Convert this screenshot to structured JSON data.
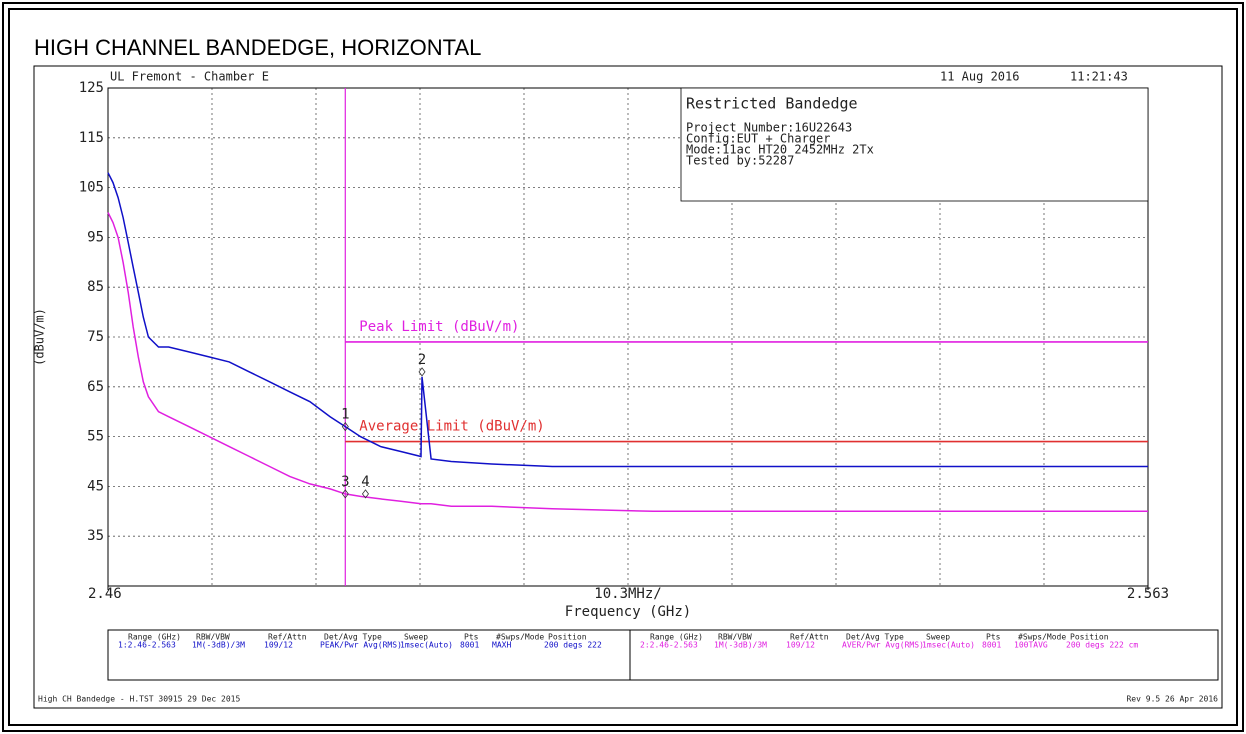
{
  "chart_data": {
    "type": "line",
    "title": "HIGH CHANNEL BANDEDGE, HORIZONTAL",
    "site": "UL Fremont - Chamber E",
    "date": "11 Aug 2016",
    "time": "11:21:43",
    "info": {
      "heading": "Restricted Bandedge",
      "lines": [
        "Project Number:16U22643",
        "Config:EUT + Charger",
        "Mode:11ac HT20 2452MHz 2Tx",
        "Tested by:52287"
      ]
    },
    "ylabel": "(dBuV/m)",
    "xlabel": "Frequency (GHz)",
    "x_span_label": "10.3MHz/",
    "xlim": [
      2.46,
      2.563
    ],
    "xticks": [
      2.46,
      2.563
    ],
    "ylim": [
      25,
      125
    ],
    "yticks": [
      125,
      115,
      105,
      95,
      85,
      75,
      65,
      55,
      45,
      35
    ],
    "grid": true,
    "x": [
      2.46,
      2.4605,
      2.461,
      2.4615,
      2.462,
      2.4625,
      2.463,
      2.4635,
      2.464,
      2.465,
      2.466,
      2.468,
      2.47,
      2.472,
      2.474,
      2.476,
      2.478,
      2.48,
      2.482,
      2.4835,
      2.485,
      2.487,
      2.489,
      2.491,
      2.4911,
      2.492,
      2.494,
      2.498,
      2.504,
      2.514,
      2.524,
      2.534,
      2.544,
      2.554,
      2.563
    ],
    "series": [
      {
        "color": "#1010c8",
        "values": [
          108,
          106,
          103,
          99,
          94,
          89,
          84,
          79,
          75,
          73,
          73,
          72,
          71,
          70,
          68,
          66,
          64,
          62,
          59,
          57,
          55,
          53,
          52,
          51,
          67,
          50.5,
          50,
          49.5,
          49,
          49,
          49,
          49,
          49,
          49,
          49
        ]
      },
      {
        "color": "#e020e0",
        "values": [
          100,
          98,
          95,
          90,
          84,
          77,
          71,
          66,
          63,
          60,
          59,
          57,
          55,
          53,
          51,
          49,
          47,
          45.5,
          44.5,
          43.5,
          43,
          42.5,
          42,
          41.5,
          41.5,
          41.5,
          41,
          41,
          40.5,
          40,
          40,
          40,
          40,
          40,
          40
        ]
      }
    ],
    "band_edge": 2.4835,
    "band_edge_color": "#e020e0",
    "limits": [
      {
        "name": "Peak Limit (dBuV/m)",
        "value": 74,
        "color": "#e020e0"
      },
      {
        "name": "Average Limit (dBuV/m)",
        "value": 54,
        "color": "#e03030"
      }
    ],
    "markers": [
      {
        "label": "1",
        "x": 2.4835,
        "y": 57
      },
      {
        "label": "2",
        "x": 2.4911,
        "y": 68
      },
      {
        "label": "3",
        "x": 2.4835,
        "y": 43.5
      },
      {
        "label": "4",
        "x": 2.4855,
        "y": 43.5
      }
    ],
    "settings": {
      "headers": [
        "Range (GHz)",
        "RBW/VBW",
        "Ref/Attn",
        "Det/Avg Type",
        "Sweep",
        "Pts",
        "#Swps/Mode",
        "Position"
      ],
      "rows": [
        [
          "1:2.46-2.563",
          "1M(-3dB)/3M",
          "109/12",
          "PEAK/Pwr Avg(RMS)",
          "1msec(Auto)",
          "8001",
          "MAXH",
          "200 degs 222"
        ],
        [
          "2:2.46-2.563",
          "1M(-3dB)/3M",
          "109/12",
          "AVER/Pwr Avg(RMS)",
          "1msec(Auto)",
          "8001",
          "100TAVG",
          "200 degs 222 cm"
        ]
      ]
    },
    "footer_left": "High CH Bandedge - H.TST 30915 29 Dec 2015",
    "footer_right": "Rev 9.5 26 Apr 2016"
  }
}
